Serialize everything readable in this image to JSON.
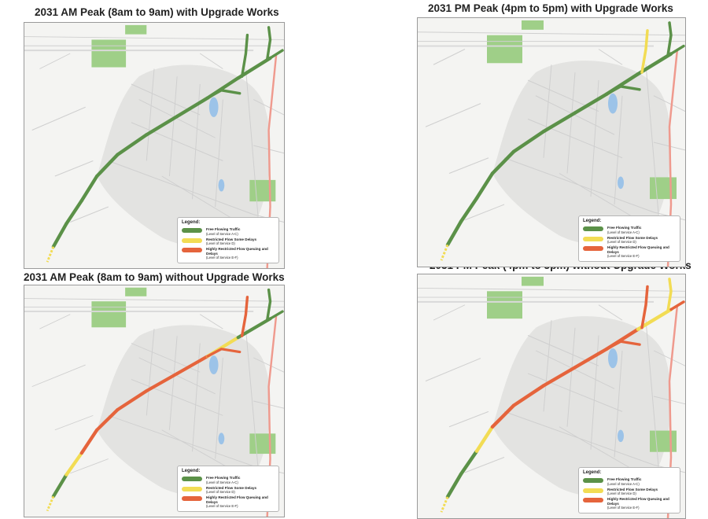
{
  "panels": [
    {
      "id": "am-with",
      "title": "2031 AM Peak (8am to 9am) with Upgrade Works",
      "segments": [
        "green",
        "green",
        "green",
        "green",
        "green",
        "green",
        "green",
        "green",
        "green"
      ],
      "links": [
        {
          "name": "north-link",
          "color": "green"
        },
        {
          "name": "east-link",
          "color": "green"
        },
        {
          "name": "ne-link",
          "color": "green"
        },
        {
          "name": "branch-link",
          "color": "green"
        }
      ]
    },
    {
      "id": "pm-with",
      "title": "2031 PM  Peak (4pm to 5pm) with Upgrade Works",
      "segments": [
        "green",
        "green",
        "green",
        "green",
        "green",
        "green",
        "green",
        "green",
        "green"
      ],
      "links": [
        {
          "name": "north-link",
          "color": "yellow"
        },
        {
          "name": "east-link",
          "color": "green"
        },
        {
          "name": "ne-link",
          "color": "green"
        },
        {
          "name": "branch-link",
          "color": "green"
        }
      ]
    },
    {
      "id": "am-without",
      "title": "2031 AM Peak (8am to 9am) without Upgrade Works",
      "segments": [
        "green",
        "yellow",
        "red",
        "red",
        "red",
        "red",
        "red",
        "yellow",
        "green"
      ],
      "links": [
        {
          "name": "north-link",
          "color": "red"
        },
        {
          "name": "east-link",
          "color": "green"
        },
        {
          "name": "ne-link",
          "color": "green"
        },
        {
          "name": "branch-link",
          "color": "red"
        }
      ]
    },
    {
      "id": "pm-without",
      "title": "2031 PM Peak (4pm to 5pm) without Upgrade Works",
      "segments": [
        "green",
        "green",
        "yellow",
        "red",
        "red",
        "red",
        "red",
        "red",
        "yellow"
      ],
      "links": [
        {
          "name": "north-link",
          "color": "red"
        },
        {
          "name": "east-link",
          "color": "red"
        },
        {
          "name": "ne-link",
          "color": "yellow"
        },
        {
          "name": "branch-link",
          "color": "red"
        }
      ]
    }
  ],
  "legend": {
    "title": "Legend:",
    "items": [
      {
        "key": "green",
        "label": "Free Flowing Traffic",
        "sub": "(Level of Service A-C)",
        "color": "#5b9148"
      },
      {
        "key": "yellow",
        "label": "Restricted Flow Some Delays",
        "sub": "(Level of Service D)",
        "color": "#f2dc54"
      },
      {
        "key": "red",
        "label": "Highly Restricted Flow Queuing and Delays",
        "sub": "(Level of Service E-F)",
        "color": "#e5643c"
      }
    ]
  },
  "colors": {
    "green": "#5b9148",
    "yellow": "#f2dc54",
    "red": "#e5643c",
    "park": "#9fcf88",
    "water": "#9cc3e8",
    "urban": "#e3e3e1",
    "arterial": "#ef9a8e"
  }
}
